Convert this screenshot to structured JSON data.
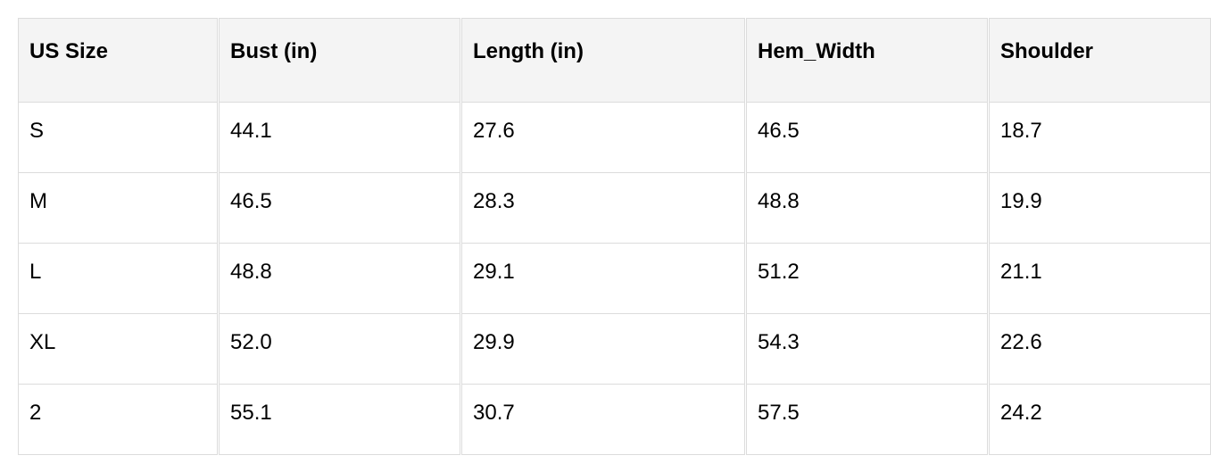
{
  "table": {
    "headers": [
      "US Size",
      "Bust (in)",
      "Length (in)",
      "Hem_Width",
      "Shoulder"
    ],
    "rows": [
      [
        "S",
        "44.1",
        "27.6",
        "46.5",
        "18.7"
      ],
      [
        "M",
        "46.5",
        "28.3",
        "48.8",
        "19.9"
      ],
      [
        "L",
        "48.8",
        "29.1",
        "51.2",
        "21.1"
      ],
      [
        "XL",
        "52.0",
        "29.9",
        "54.3",
        "22.6"
      ],
      [
        "2",
        "55.1",
        "30.7",
        "57.5",
        "24.2"
      ]
    ]
  }
}
